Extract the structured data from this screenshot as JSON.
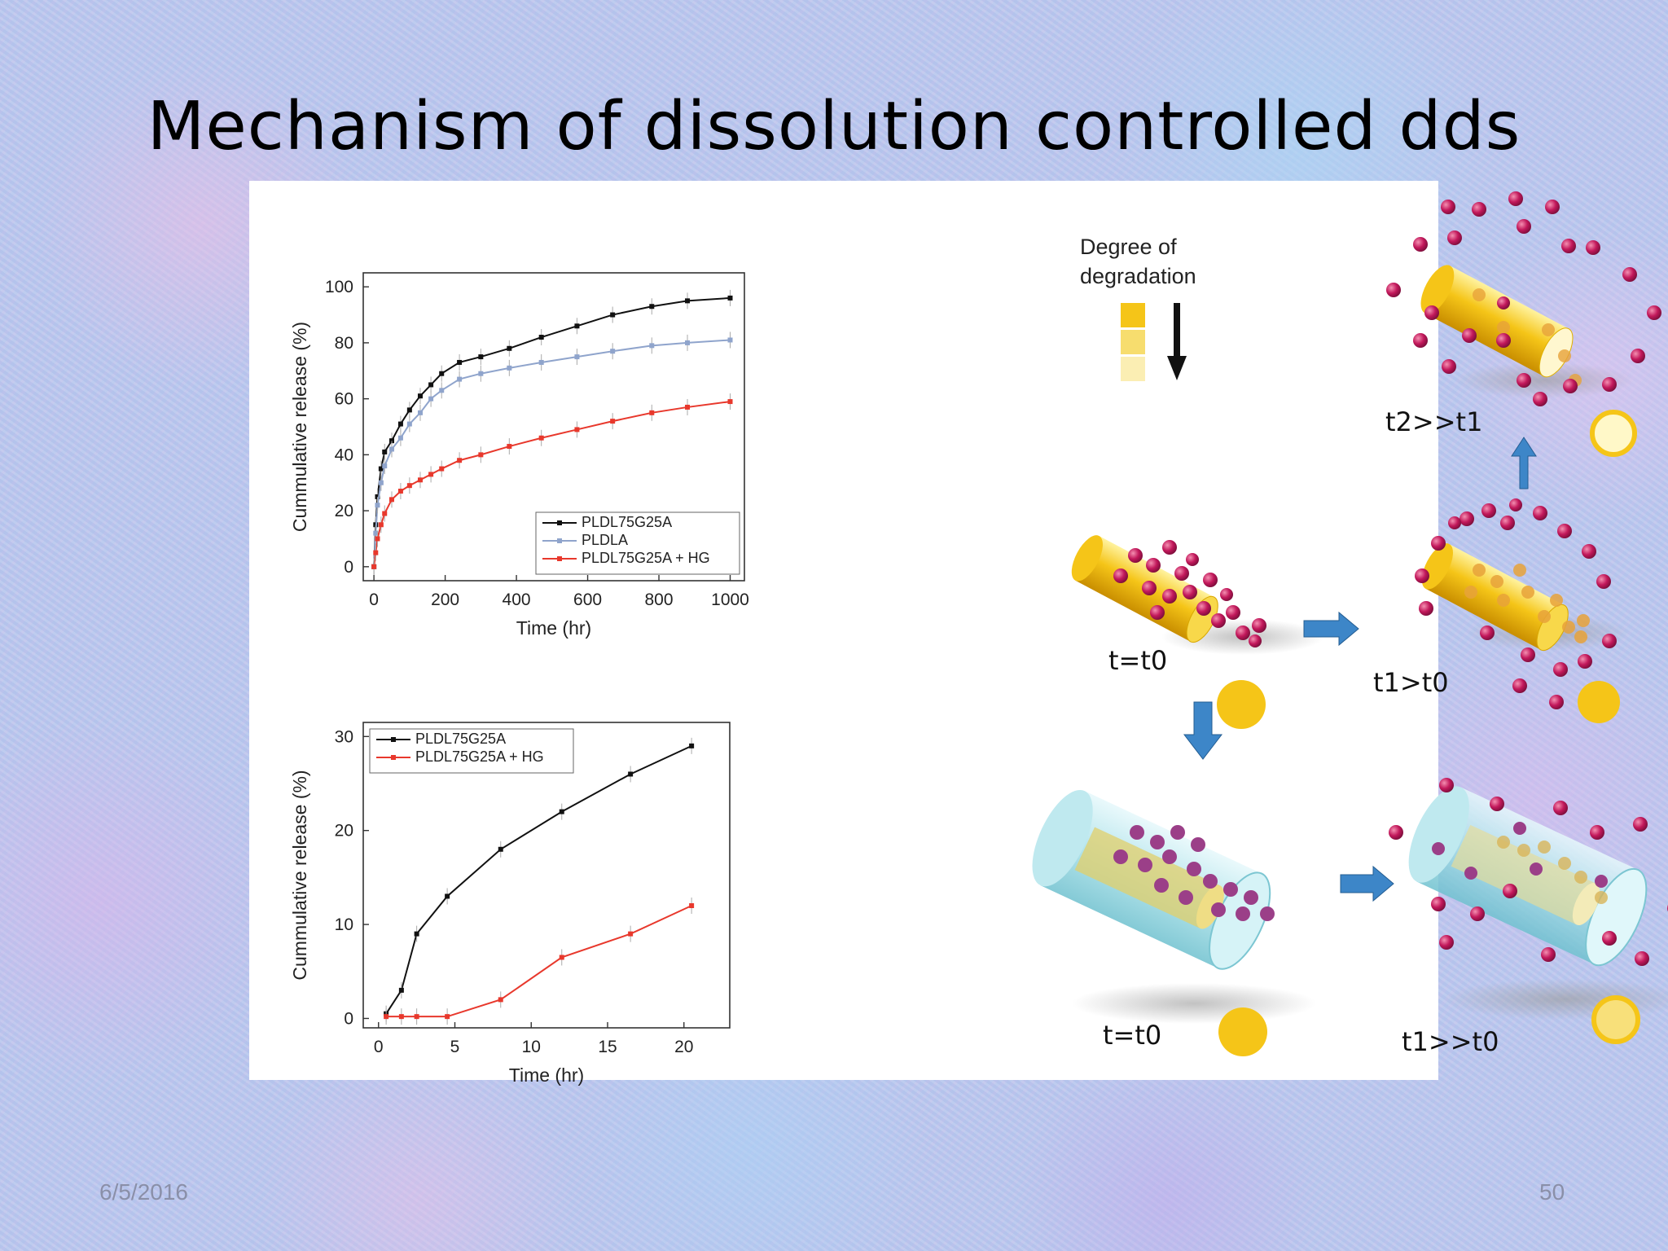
{
  "slide": {
    "title": "Mechanism of dissolution controlled dds",
    "date": "6/5/2016",
    "page_number": "50"
  },
  "diagram": {
    "degree_label_line1": "Degree of",
    "degree_label_line2": "degradation",
    "labels": {
      "t0_top": "t=t0",
      "t1_gt_t0": "t1>t0",
      "t2_gg_t1": "t2>>t1",
      "t0_bottom": "t=t0",
      "t1_gg_t0": "t1>>t0"
    },
    "colors": {
      "drug_particle": "#c2185b",
      "polymer_yellow": "#f5c518",
      "hydrogel_cyan": "#a8e0e8",
      "arrow_blue": "#3d86c8"
    }
  },
  "chart_data": [
    {
      "type": "line",
      "xlabel": "Time (hr)",
      "ylabel": "Cummulative release (%)",
      "xlim": [
        -30,
        1040
      ],
      "ylim": [
        -5,
        105
      ],
      "xticks": [
        "0",
        "200",
        "400",
        "600",
        "800",
        "1000"
      ],
      "yticks": [
        "0",
        "20",
        "40",
        "60",
        "80",
        "100"
      ],
      "xtick_values": [
        0,
        200,
        400,
        600,
        800,
        1000
      ],
      "ytick_values": [
        0,
        20,
        40,
        60,
        80,
        100
      ],
      "legend_position": "bottom-right",
      "series": [
        {
          "name": "PLDL75G25A",
          "color": "#111111",
          "x": [
            0,
            5,
            10,
            20,
            30,
            50,
            75,
            100,
            130,
            160,
            190,
            240,
            300,
            380,
            470,
            570,
            670,
            780,
            880,
            1000
          ],
          "y": [
            0,
            15,
            25,
            35,
            41,
            45,
            51,
            56,
            61,
            65,
            69,
            73,
            75,
            78,
            82,
            86,
            90,
            93,
            95,
            96
          ]
        },
        {
          "name": "PLDLA",
          "color": "#8fa4cc",
          "x": [
            0,
            5,
            10,
            20,
            30,
            50,
            75,
            100,
            130,
            160,
            190,
            240,
            300,
            380,
            470,
            570,
            670,
            780,
            880,
            1000
          ],
          "y": [
            0,
            12,
            22,
            30,
            36,
            42,
            46,
            51,
            55,
            60,
            63,
            67,
            69,
            71,
            73,
            75,
            77,
            79,
            80,
            81
          ]
        },
        {
          "name": "PLDL75G25A + HG",
          "color": "#e8382c",
          "x": [
            0,
            5,
            10,
            20,
            30,
            50,
            75,
            100,
            130,
            160,
            190,
            240,
            300,
            380,
            470,
            570,
            670,
            780,
            880,
            1000
          ],
          "y": [
            0,
            5,
            10,
            15,
            19,
            24,
            27,
            29,
            31,
            33,
            35,
            38,
            40,
            43,
            46,
            49,
            52,
            55,
            57,
            59
          ]
        }
      ]
    },
    {
      "type": "line",
      "xlabel": "Time (hr)",
      "ylabel": "Cummulative release (%)",
      "xlim": [
        -1,
        23
      ],
      "ylim": [
        -1,
        31.5
      ],
      "xticks": [
        "0",
        "5",
        "10",
        "15",
        "20"
      ],
      "yticks": [
        "0",
        "10",
        "20",
        "30"
      ],
      "xtick_values": [
        0,
        5,
        10,
        15,
        20
      ],
      "ytick_values": [
        0,
        10,
        20,
        30
      ],
      "legend_position": "top-left",
      "series": [
        {
          "name": "PLDL75G25A",
          "color": "#111111",
          "x": [
            0.5,
            1.5,
            2.5,
            4.5,
            8,
            12,
            16.5,
            20.5
          ],
          "y": [
            0.5,
            3,
            9,
            13,
            18,
            22,
            26,
            29
          ]
        },
        {
          "name": "PLDL75G25A + HG",
          "color": "#e8382c",
          "x": [
            0.5,
            1.5,
            2.5,
            4.5,
            8,
            12,
            16.5,
            20.5
          ],
          "y": [
            0.2,
            0.2,
            0.2,
            0.2,
            2,
            6.5,
            9,
            12
          ]
        }
      ]
    }
  ]
}
